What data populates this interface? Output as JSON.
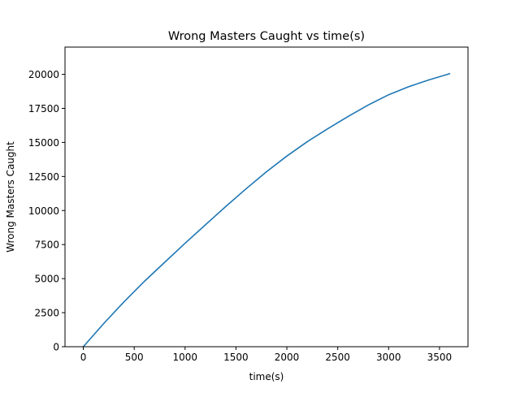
{
  "chart_data": {
    "type": "line",
    "title": "Wrong Masters Caught vs time(s)",
    "xlabel": "time(s)",
    "ylabel": "Wrong Masters Caught",
    "xlim": [
      -180,
      3780
    ],
    "ylim": [
      0,
      22000
    ],
    "xticks": [
      0,
      500,
      1000,
      1500,
      2000,
      2500,
      3000,
      3500
    ],
    "xtick_labels": [
      "0",
      "500",
      "1000",
      "1500",
      "2000",
      "2500",
      "3000",
      "3500"
    ],
    "yticks": [
      0,
      2500,
      5000,
      7500,
      10000,
      12500,
      15000,
      17500,
      20000
    ],
    "ytick_labels": [
      "0",
      "2500",
      "5000",
      "7500",
      "10000",
      "12500",
      "15000",
      "17500",
      "20000"
    ],
    "grid": false,
    "legend": "none",
    "series": [
      {
        "color": "#1f77b4",
        "x": [
          0,
          200,
          400,
          600,
          800,
          1000,
          1200,
          1400,
          1600,
          1800,
          2000,
          2200,
          2400,
          2600,
          2800,
          3000,
          3200,
          3400,
          3600
        ],
        "y": [
          0,
          1700,
          3300,
          4800,
          6200,
          7600,
          8950,
          10300,
          11600,
          12850,
          14000,
          15050,
          16000,
          16900,
          17750,
          18500,
          19100,
          19600,
          20050
        ]
      }
    ]
  }
}
